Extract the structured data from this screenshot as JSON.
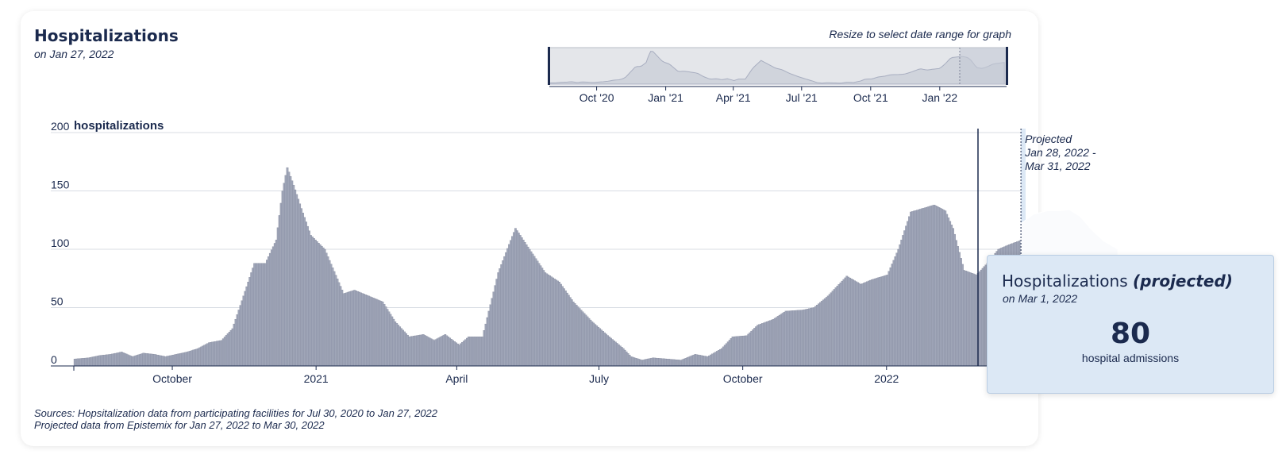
{
  "header": {
    "title": "Hospitalizations",
    "date": "on Jan 27, 2022",
    "resize_hint": "Resize to select date range for graph"
  },
  "sources": {
    "line1": "Sources: Hopsitalization data from participating facilities for Jul 30, 2020 to Jan 27, 2022",
    "line2": "Projected data from Epistemix for Jan 27, 2022 to Mar 30, 2022"
  },
  "tooltip": {
    "title": "Hospitalizations",
    "title_em": "(projected)",
    "date": "on Mar 1, 2022",
    "value": "80",
    "unit": "hospital admissions"
  },
  "colors": {
    "bars": "#a0a6b8",
    "bar_edge": "#7b8196",
    "projection_bg": "#dce8f5",
    "projection_band": "#fafbfd",
    "text": "#1b2a4e",
    "grid": "#d8dce3"
  },
  "chart_data": {
    "type": "bar",
    "ylabel": "hospitalizations",
    "ylim": [
      0,
      200
    ],
    "yticks": [
      "0",
      "50",
      "100",
      "150",
      "200"
    ],
    "xticks": [
      "October",
      "2021",
      "April",
      "July",
      "October",
      "2022"
    ],
    "grid": true,
    "x_start": "2020-07-30",
    "x_end": "2022-03-31",
    "series": [
      {
        "name": "hospitalizations",
        "points": [
          [
            "2020-07-30",
            6
          ],
          [
            "2020-08-08",
            7
          ],
          [
            "2020-08-15",
            9
          ],
          [
            "2020-08-22",
            10
          ],
          [
            "2020-08-29",
            12
          ],
          [
            "2020-09-05",
            8
          ],
          [
            "2020-09-12",
            11
          ],
          [
            "2020-09-19",
            10
          ],
          [
            "2020-09-26",
            8
          ],
          [
            "2020-10-03",
            10
          ],
          [
            "2020-10-10",
            12
          ],
          [
            "2020-10-17",
            15
          ],
          [
            "2020-10-24",
            20
          ],
          [
            "2020-11-01",
            22
          ],
          [
            "2020-11-08",
            32
          ],
          [
            "2020-11-15",
            60
          ],
          [
            "2020-11-22",
            88
          ],
          [
            "2020-11-29",
            88
          ],
          [
            "2020-12-06",
            108
          ],
          [
            "2020-12-10",
            150
          ],
          [
            "2020-12-13",
            170
          ],
          [
            "2020-12-17",
            155
          ],
          [
            "2020-12-22",
            135
          ],
          [
            "2020-12-28",
            112
          ],
          [
            "2021-01-06",
            100
          ],
          [
            "2021-01-18",
            62
          ],
          [
            "2021-01-25",
            65
          ],
          [
            "2021-02-03",
            60
          ],
          [
            "2021-02-12",
            55
          ],
          [
            "2021-02-20",
            38
          ],
          [
            "2021-03-01",
            25
          ],
          [
            "2021-03-10",
            27
          ],
          [
            "2021-03-17",
            22
          ],
          [
            "2021-03-24",
            27
          ],
          [
            "2021-04-02",
            18
          ],
          [
            "2021-04-08",
            25
          ],
          [
            "2021-04-17",
            25
          ],
          [
            "2021-04-27",
            80
          ],
          [
            "2021-05-08",
            118
          ],
          [
            "2021-05-18",
            98
          ],
          [
            "2021-05-27",
            80
          ],
          [
            "2021-06-05",
            72
          ],
          [
            "2021-06-14",
            55
          ],
          [
            "2021-06-26",
            38
          ],
          [
            "2021-07-07",
            25
          ],
          [
            "2021-07-16",
            15
          ],
          [
            "2021-07-21",
            8
          ],
          [
            "2021-07-28",
            5
          ],
          [
            "2021-08-04",
            7
          ],
          [
            "2021-08-13",
            6
          ],
          [
            "2021-08-22",
            5
          ],
          [
            "2021-08-31",
            10
          ],
          [
            "2021-09-08",
            8
          ],
          [
            "2021-09-17",
            15
          ],
          [
            "2021-09-24",
            25
          ],
          [
            "2021-10-03",
            26
          ],
          [
            "2021-10-10",
            35
          ],
          [
            "2021-10-20",
            40
          ],
          [
            "2021-10-28",
            47
          ],
          [
            "2021-11-08",
            48
          ],
          [
            "2021-11-15",
            50
          ],
          [
            "2021-11-24",
            60
          ],
          [
            "2021-12-06",
            77
          ],
          [
            "2021-12-15",
            70
          ],
          [
            "2021-12-22",
            74
          ],
          [
            "2022-01-01",
            78
          ],
          [
            "2022-01-08",
            100
          ],
          [
            "2022-01-16",
            132
          ],
          [
            "2022-01-21",
            134
          ],
          [
            "2022-01-31",
            138
          ],
          [
            "2022-02-07",
            133
          ],
          [
            "2022-02-12",
            118
          ],
          [
            "2022-02-19",
            82
          ],
          [
            "2022-02-27",
            78
          ],
          [
            "2022-03-06",
            88
          ],
          [
            "2022-03-13",
            100
          ],
          [
            "2022-03-20",
            104
          ],
          [
            "2022-03-28",
            108
          ]
        ]
      }
    ],
    "projection": {
      "label": "Projected\nJan 28, 2022 -\nMar 31, 2022",
      "median": [
        [
          "2022-03-28",
          84
        ],
        [
          "2022-04-03",
          80
        ],
        [
          "2022-04-10",
          78
        ],
        [
          "2022-04-17",
          80
        ],
        [
          "2022-04-24",
          79
        ],
        [
          "2022-05-01",
          80
        ],
        [
          "2022-05-08",
          79
        ],
        [
          "2022-05-15",
          77
        ],
        [
          "2022-05-22",
          78
        ],
        [
          "2022-05-29",
          76
        ]
      ],
      "upper": [
        [
          "2022-03-28",
          122
        ],
        [
          "2022-04-05",
          130
        ],
        [
          "2022-04-14",
          133
        ],
        [
          "2022-04-22",
          133
        ],
        [
          "2022-04-28",
          134
        ],
        [
          "2022-05-05",
          128
        ],
        [
          "2022-05-12",
          117
        ],
        [
          "2022-05-20",
          107
        ],
        [
          "2022-05-29",
          100
        ]
      ],
      "lower": [
        [
          "2022-03-28",
          50
        ],
        [
          "2022-04-06",
          45
        ],
        [
          "2022-04-14",
          41
        ],
        [
          "2022-04-22",
          35
        ],
        [
          "2022-04-30",
          31
        ],
        [
          "2022-05-08",
          28
        ],
        [
          "2022-05-18",
          30
        ],
        [
          "2022-05-29",
          38
        ]
      ],
      "selected_date": "Mar 1, 2022"
    }
  },
  "brush_data": {
    "xticks": [
      "Oct '20",
      "Jan '21",
      "Apr '21",
      "Jul '21",
      "Oct '21",
      "Jan '22"
    ]
  }
}
